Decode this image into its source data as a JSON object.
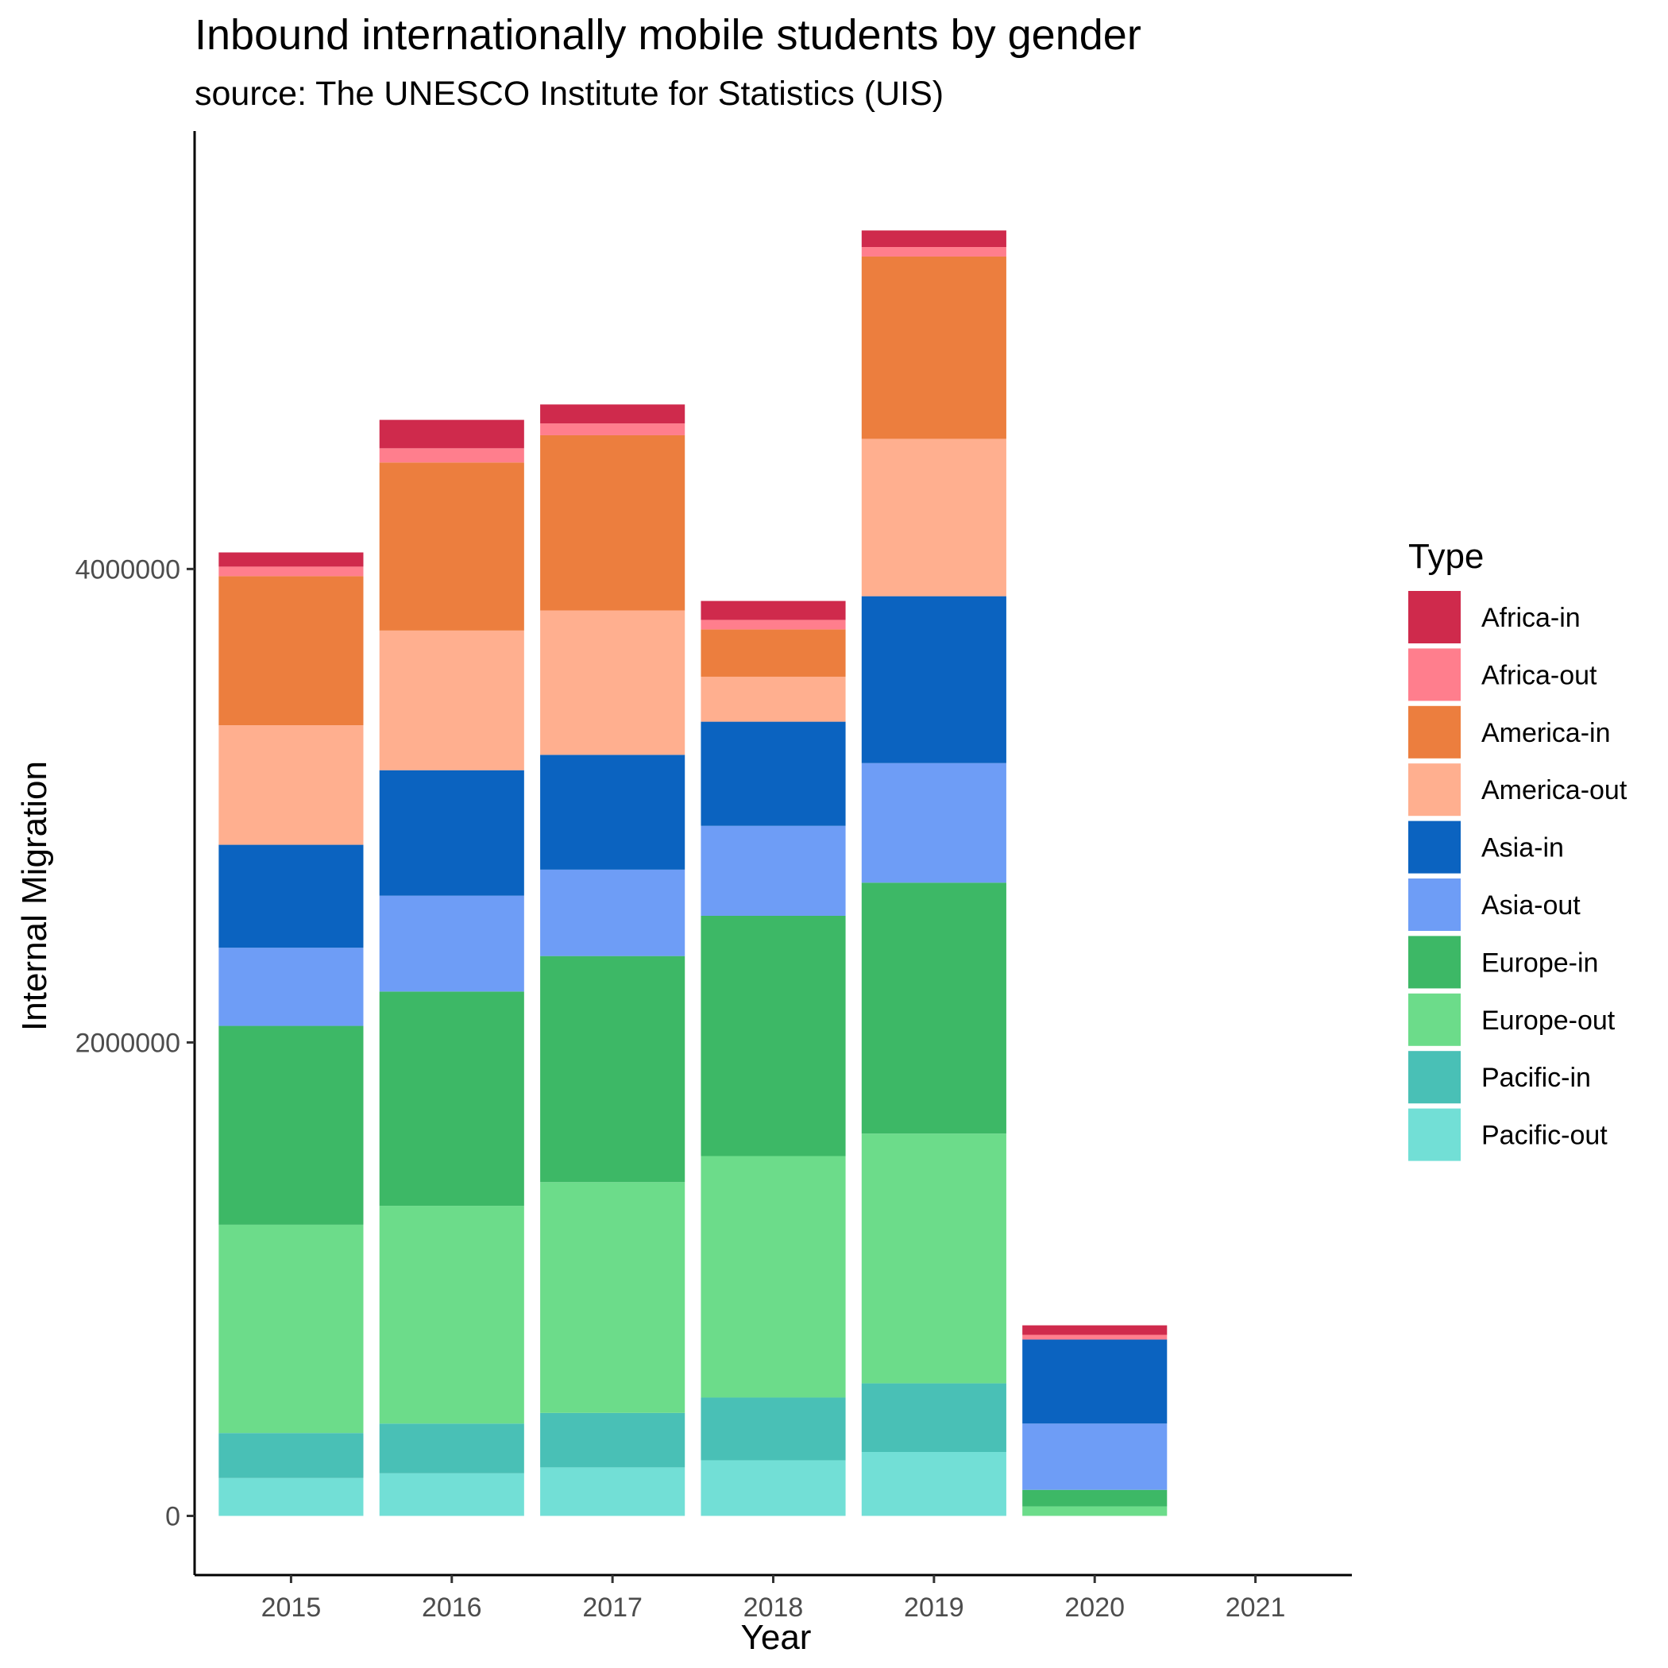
{
  "chart_data": {
    "type": "bar",
    "stacked": true,
    "title": "Inbound internationally mobile students by gender",
    "subtitle": "source: The UNESCO Institute for Statistics (UIS)",
    "xlabel": "Year",
    "ylabel": "Internal Migration",
    "categories": [
      "2015",
      "2016",
      "2017",
      "2018",
      "2019",
      "2020",
      "2021"
    ],
    "yticks": [
      0,
      2000000,
      4000000
    ],
    "ytick_labels": [
      "0",
      "2000000",
      "4000000"
    ],
    "ylim": [
      -250000,
      5850000
    ],
    "legend_title": "Type",
    "legend_position": "right",
    "series": [
      {
        "name": "Pacific-out",
        "color": "#72DFD6",
        "values": [
          160000,
          180000,
          205000,
          235000,
          270000,
          0,
          0
        ]
      },
      {
        "name": "Pacific-in",
        "color": "#49C0B6",
        "values": [
          190000,
          210000,
          230000,
          265000,
          290000,
          0,
          0
        ]
      },
      {
        "name": "Europe-out",
        "color": "#6CDC8A",
        "values": [
          880000,
          920000,
          975000,
          1020000,
          1055000,
          40000,
          0
        ]
      },
      {
        "name": "Europe-in",
        "color": "#3DB866",
        "values": [
          840000,
          905000,
          955000,
          1015000,
          1060000,
          70000,
          0
        ]
      },
      {
        "name": "Asia-out",
        "color": "#6E9DF6",
        "values": [
          330000,
          405000,
          365000,
          380000,
          505000,
          280000,
          0
        ]
      },
      {
        "name": "Asia-in",
        "color": "#0B63C0",
        "values": [
          435000,
          530000,
          485000,
          440000,
          705000,
          355000,
          0
        ]
      },
      {
        "name": "America-out",
        "color": "#FFAF8F",
        "values": [
          505000,
          590000,
          610000,
          190000,
          665000,
          0,
          0
        ]
      },
      {
        "name": "America-in",
        "color": "#EC7E3E",
        "values": [
          630000,
          710000,
          740000,
          200000,
          770000,
          0,
          0
        ]
      },
      {
        "name": "Africa-out",
        "color": "#FF7E8D",
        "values": [
          40000,
          60000,
          50000,
          40000,
          40000,
          20000,
          0
        ]
      },
      {
        "name": "Africa-in",
        "color": "#CF2A4C",
        "values": [
          60000,
          120000,
          80000,
          80000,
          70000,
          40000,
          0
        ]
      }
    ],
    "legend_order": [
      "Africa-in",
      "Africa-out",
      "America-in",
      "America-out",
      "Asia-in",
      "Asia-out",
      "Europe-in",
      "Europe-out",
      "Pacific-in",
      "Pacific-out"
    ]
  }
}
